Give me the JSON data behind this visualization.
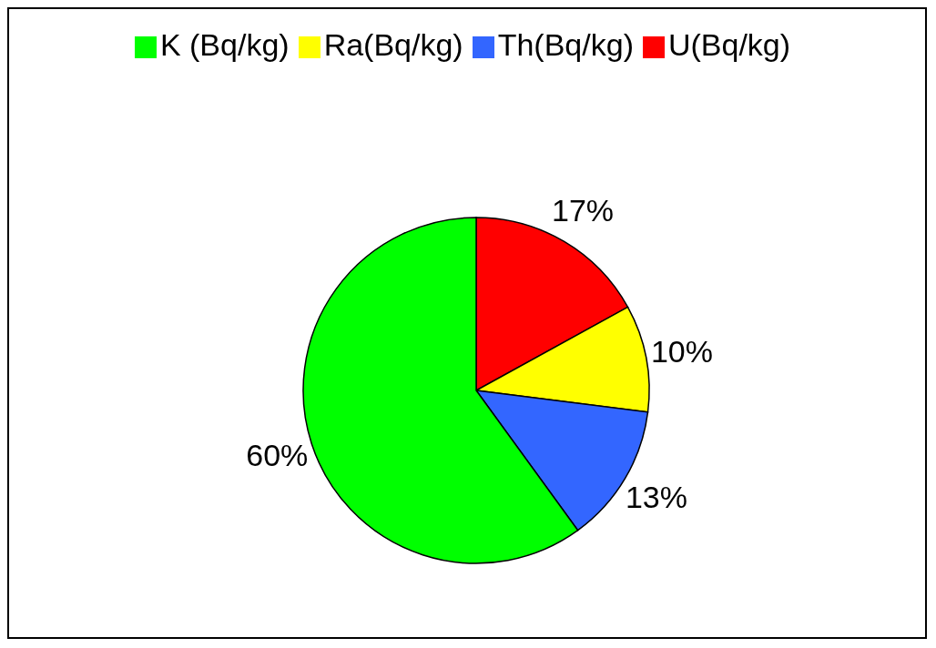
{
  "chart_data": {
    "type": "pie",
    "categories": [
      "U(Bq/kg)",
      "Ra(Bq/kg)",
      "Th(Bq/kg)",
      "K (Bq/kg)"
    ],
    "values": [
      17,
      10,
      13,
      60
    ],
    "colors": [
      "#ff0000",
      "#ffff00",
      "#3366ff",
      "#00ff00"
    ],
    "value_labels": [
      "17%",
      "10%",
      "13%",
      "60%"
    ],
    "legend": "top"
  }
}
